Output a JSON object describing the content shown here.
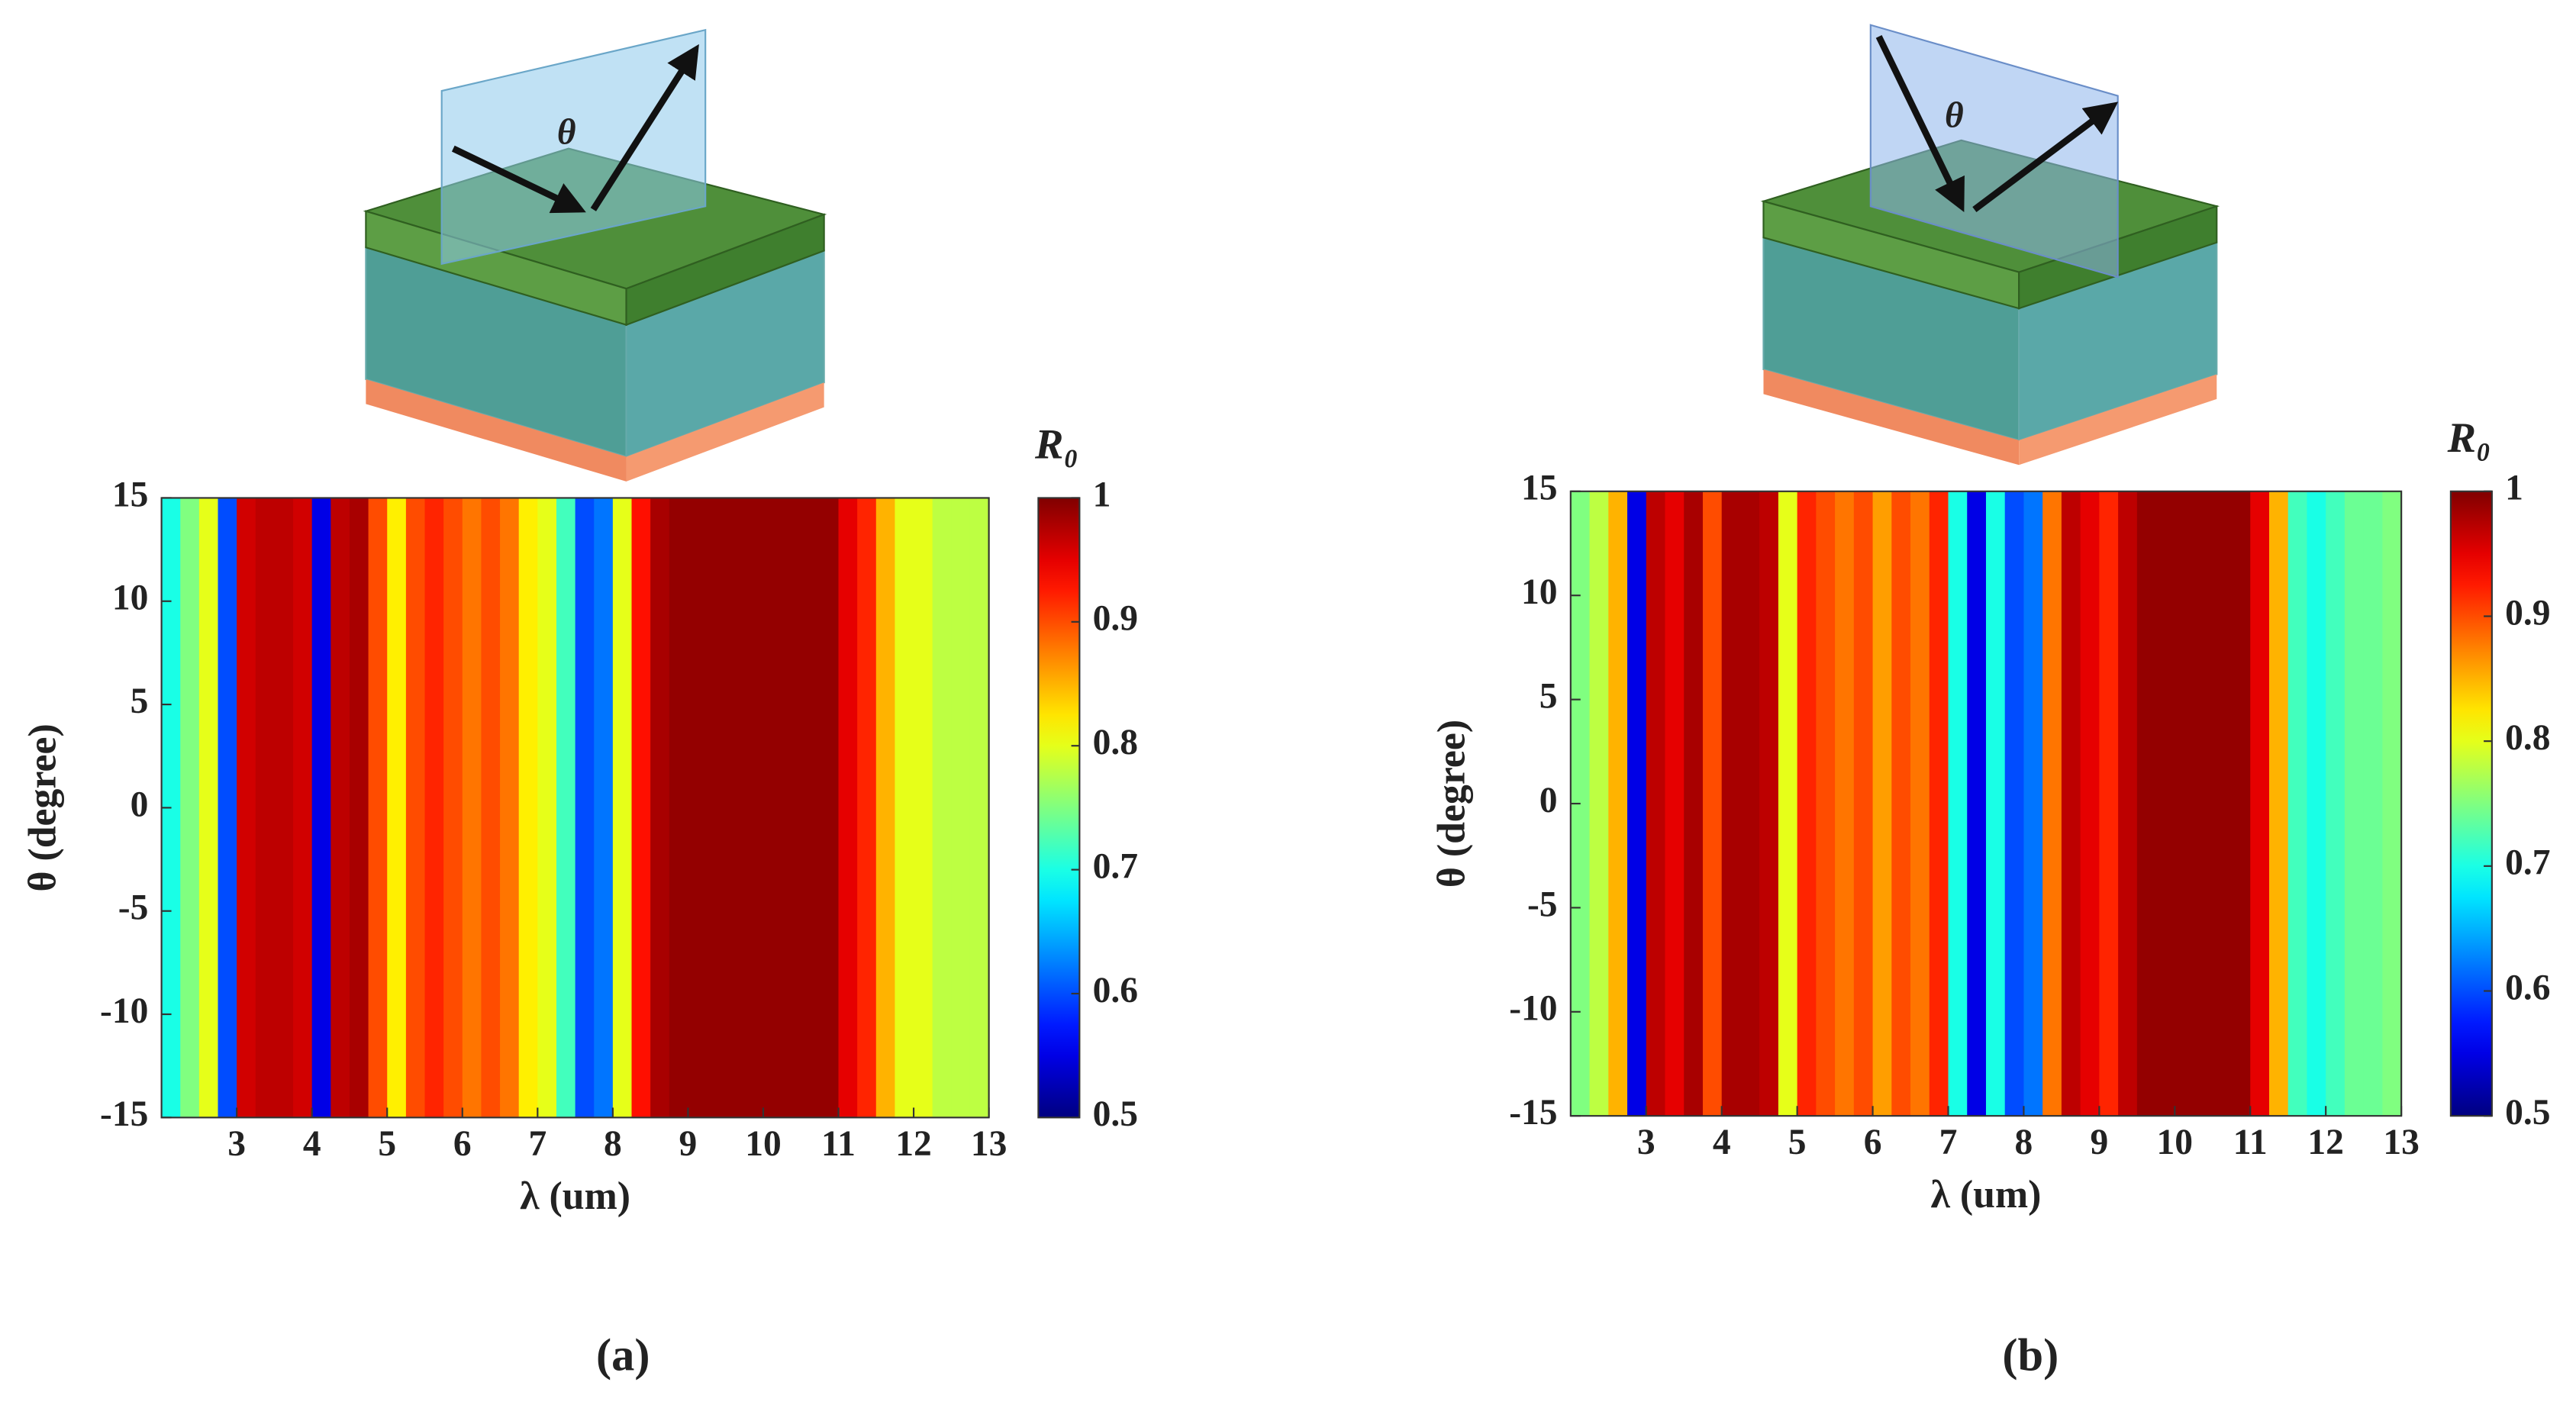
{
  "chart_data": [
    {
      "type": "heatmap",
      "panel_label": "(a)",
      "illustration_label": "θ",
      "xlabel": "λ (um)",
      "ylabel": "θ (degree)",
      "colorbar_label": "R₀",
      "xlim": [
        2,
        13
      ],
      "ylim": [
        -15,
        15
      ],
      "xticks": [
        3,
        4,
        5,
        6,
        7,
        8,
        9,
        10,
        11,
        12,
        13
      ],
      "yticks": [
        -15,
        -10,
        -5,
        0,
        5,
        10,
        15
      ],
      "clim": [
        0.5,
        1
      ],
      "cticks": [
        0.5,
        0.6,
        0.7,
        0.8,
        0.9,
        1
      ],
      "colormap": "jet",
      "x": [
        2.125,
        2.375,
        2.625,
        2.875,
        3.125,
        3.375,
        3.625,
        3.875,
        4.125,
        4.375,
        4.625,
        4.875,
        5.125,
        5.375,
        5.625,
        5.875,
        6.125,
        6.375,
        6.625,
        6.875,
        7.125,
        7.375,
        7.625,
        7.875,
        8.125,
        8.375,
        8.625,
        8.875,
        9.125,
        9.375,
        9.625,
        9.875,
        10.125,
        10.375,
        10.625,
        10.875,
        11.125,
        11.375,
        11.625,
        11.875,
        12.125,
        12.375,
        12.625,
        12.875
      ],
      "values": [
        0.7,
        0.75,
        0.8,
        0.6,
        0.96,
        0.97,
        0.97,
        0.96,
        0.55,
        0.97,
        0.98,
        0.9,
        0.82,
        0.9,
        0.92,
        0.9,
        0.88,
        0.9,
        0.88,
        0.82,
        0.8,
        0.72,
        0.6,
        0.62,
        0.8,
        0.93,
        0.98,
        0.99,
        0.99,
        0.99,
        0.99,
        0.99,
        0.99,
        0.99,
        0.99,
        0.99,
        0.95,
        0.92,
        0.85,
        0.8,
        0.8,
        0.78,
        0.78,
        0.78
      ]
    },
    {
      "type": "heatmap",
      "panel_label": "(b)",
      "illustration_label": "θ",
      "xlabel": "λ (um)",
      "ylabel": "θ (degree)",
      "colorbar_label": "R₀",
      "xlim": [
        2,
        13
      ],
      "ylim": [
        -15,
        15
      ],
      "xticks": [
        3,
        4,
        5,
        6,
        7,
        8,
        9,
        10,
        11,
        12,
        13
      ],
      "yticks": [
        -15,
        -10,
        -5,
        0,
        5,
        10,
        15
      ],
      "clim": [
        0.5,
        1
      ],
      "cticks": [
        0.5,
        0.6,
        0.7,
        0.8,
        0.9,
        1
      ],
      "colormap": "jet",
      "x": [
        2.125,
        2.375,
        2.625,
        2.875,
        3.125,
        3.375,
        3.625,
        3.875,
        4.125,
        4.375,
        4.625,
        4.875,
        5.125,
        5.375,
        5.625,
        5.875,
        6.125,
        6.375,
        6.625,
        6.875,
        7.125,
        7.375,
        7.625,
        7.875,
        8.125,
        8.375,
        8.625,
        8.875,
        9.125,
        9.375,
        9.625,
        9.875,
        10.125,
        10.375,
        10.625,
        10.875,
        11.125,
        11.375,
        11.625,
        11.875,
        12.125,
        12.375,
        12.625,
        12.875
      ],
      "values": [
        0.75,
        0.78,
        0.85,
        0.55,
        0.97,
        0.95,
        0.98,
        0.9,
        0.98,
        0.98,
        0.97,
        0.8,
        0.92,
        0.9,
        0.88,
        0.9,
        0.86,
        0.9,
        0.88,
        0.92,
        0.7,
        0.55,
        0.7,
        0.6,
        0.62,
        0.88,
        0.97,
        0.95,
        0.92,
        0.97,
        0.99,
        0.99,
        0.99,
        0.99,
        0.99,
        0.99,
        0.95,
        0.85,
        0.72,
        0.7,
        0.72,
        0.74,
        0.74,
        0.75
      ]
    }
  ]
}
